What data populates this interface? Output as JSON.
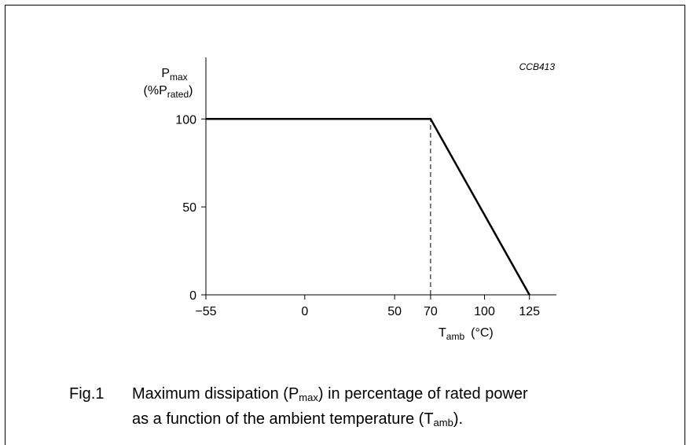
{
  "chart_data": {
    "type": "line",
    "figure_code": "CCB413",
    "ylabel": {
      "main": "P",
      "sub": "max",
      "unit_open": "(%P",
      "unit_sub": "rated",
      "unit_close": ")"
    },
    "xlabel": {
      "main": "T",
      "sub": "amb",
      "unit": "(°C)"
    },
    "x_ticks": [
      {
        "value": -55,
        "label": "−55"
      },
      {
        "value": 0,
        "label": "0"
      },
      {
        "value": 50,
        "label": "50"
      },
      {
        "value": 70,
        "label": "70"
      },
      {
        "value": 100,
        "label": "100"
      },
      {
        "value": 125,
        "label": "125"
      }
    ],
    "y_ticks": [
      {
        "value": 0,
        "label": "0"
      },
      {
        "value": 50,
        "label": "50"
      },
      {
        "value": 100,
        "label": "100"
      }
    ],
    "xlim": [
      -55,
      140
    ],
    "ylim": [
      0,
      135
    ],
    "series": [
      {
        "x": [
          -55,
          70,
          125
        ],
        "y": [
          100,
          100,
          0
        ]
      }
    ],
    "reference_lines": [
      {
        "x": 70,
        "y_from": 0,
        "y_to": 100,
        "style": "dashed"
      }
    ],
    "grid": false
  },
  "caption": {
    "number": "Fig.1",
    "line1_pre": "Maximum dissipation (P",
    "line1_sub": "max",
    "line1_post": ") in percentage of rated power",
    "line2_pre": "as a function of the ambient temperature (T",
    "line2_sub": "amb",
    "line2_post": ")."
  }
}
